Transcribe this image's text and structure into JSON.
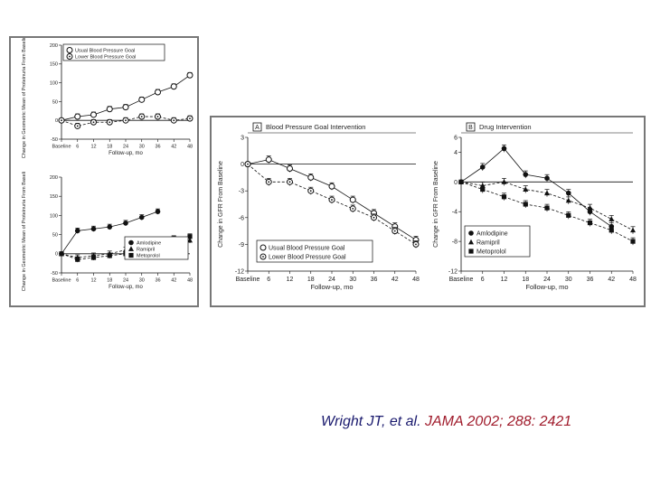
{
  "citation": {
    "authors": "Wright JT, et al. ",
    "journal_ref": "JAMA 2002; 288: 2421"
  },
  "chart_data": [
    {
      "id": "top-left",
      "type": "line",
      "title": "",
      "ylabel": "Change in Geometric Mean of Proteinuria From Baseline, %",
      "xlabel": "Follow-up, mo",
      "x": [
        "Baseline",
        "6",
        "12",
        "18",
        "24",
        "30",
        "36",
        "42",
        "48"
      ],
      "ylim": [
        -50,
        200
      ],
      "yticks": [
        "200",
        "150",
        "100",
        "50",
        "0",
        "-50"
      ],
      "legend": [
        "Usual Blood Pressure Goal",
        "Lower Blood Pressure Goal"
      ],
      "series": [
        {
          "name": "Usual Blood Pressure Goal",
          "marker": "open-circle",
          "values": [
            0,
            10,
            15,
            30,
            35,
            55,
            75,
            90,
            120
          ]
        },
        {
          "name": "Lower Blood Pressure Goal",
          "marker": "open-circle-dot",
          "values": [
            0,
            -15,
            -5,
            -5,
            0,
            10,
            10,
            0,
            5
          ]
        }
      ]
    },
    {
      "id": "bottom-left",
      "type": "line",
      "title": "",
      "ylabel": "Change in Geometric Mean of Proteinuria From Baseline, %",
      "xlabel": "Follow-up, mo",
      "x": [
        "Baseline",
        "6",
        "12",
        "18",
        "24",
        "30",
        "36",
        "42",
        "48"
      ],
      "ylim": [
        -50,
        200
      ],
      "yticks": [
        "200",
        "150",
        "100",
        "50",
        "0",
        "-50"
      ],
      "legend": [
        "Amlodipine",
        "Ramipril",
        "Metoprolol"
      ],
      "series": [
        {
          "name": "Amlodipine",
          "marker": "filled-circle",
          "values": [
            0,
            60,
            65,
            70,
            80,
            95,
            110,
            null,
            null
          ]
        },
        {
          "name": "Ramipril",
          "marker": "filled-triangle",
          "values": [
            0,
            -10,
            -5,
            0,
            10,
            10,
            15,
            25,
            35
          ]
        },
        {
          "name": "Metoprolol",
          "marker": "filled-square",
          "values": [
            0,
            -15,
            -10,
            -5,
            0,
            15,
            30,
            40,
            45
          ]
        }
      ]
    },
    {
      "id": "panel-a",
      "type": "line",
      "title": "Blood Pressure Goal Intervention",
      "panel_label": "A",
      "ylabel": "Change in GFR From Baseline",
      "xlabel": "Follow-up, mo",
      "x": [
        "Baseline",
        "6",
        "12",
        "18",
        "24",
        "30",
        "36",
        "42",
        "48"
      ],
      "ylim": [
        -12,
        3
      ],
      "yticks": [
        "3",
        "0",
        "-3",
        "-6",
        "-9",
        "-12"
      ],
      "legend": [
        "Usual Blood Pressure Goal",
        "Lower Blood Pressure Goal"
      ],
      "series": [
        {
          "name": "Usual Blood Pressure Goal",
          "marker": "open-circle",
          "values": [
            0,
            0.5,
            -0.5,
            -1.5,
            -2.5,
            -4,
            -5.5,
            -7,
            -8.5
          ]
        },
        {
          "name": "Lower Blood Pressure Goal",
          "marker": "open-circle-dot",
          "values": [
            0,
            -2,
            -2,
            -3,
            -4,
            -5,
            -6,
            -7.5,
            -9
          ]
        }
      ]
    },
    {
      "id": "panel-b",
      "type": "line",
      "title": "Drug Intervention",
      "panel_label": "B",
      "ylabel": "Change in GFR From Baseline",
      "xlabel": "Follow-up, mo",
      "x": [
        "Baseline",
        "6",
        "12",
        "18",
        "24",
        "30",
        "36",
        "42",
        "48"
      ],
      "ylim": [
        -12,
        6
      ],
      "yticks": [
        "6",
        "4",
        "0",
        "-4",
        "-8",
        "-12"
      ],
      "legend": [
        "Amlodipine",
        "Ramipril",
        "Metoprolol"
      ],
      "series": [
        {
          "name": "Amlodipine",
          "marker": "filled-circle",
          "values": [
            0,
            2,
            4.5,
            1,
            0.5,
            -1.5,
            -4,
            -6,
            null
          ]
        },
        {
          "name": "Ramipril",
          "marker": "filled-triangle",
          "values": [
            0,
            -0.5,
            0,
            -1,
            -1.5,
            -2.5,
            -3.5,
            -5,
            -6.5
          ]
        },
        {
          "name": "Metoprolol",
          "marker": "filled-square",
          "values": [
            0,
            -1,
            -2,
            -3,
            -3.5,
            -4.5,
            -5.5,
            -6.5,
            -8
          ]
        }
      ]
    }
  ]
}
